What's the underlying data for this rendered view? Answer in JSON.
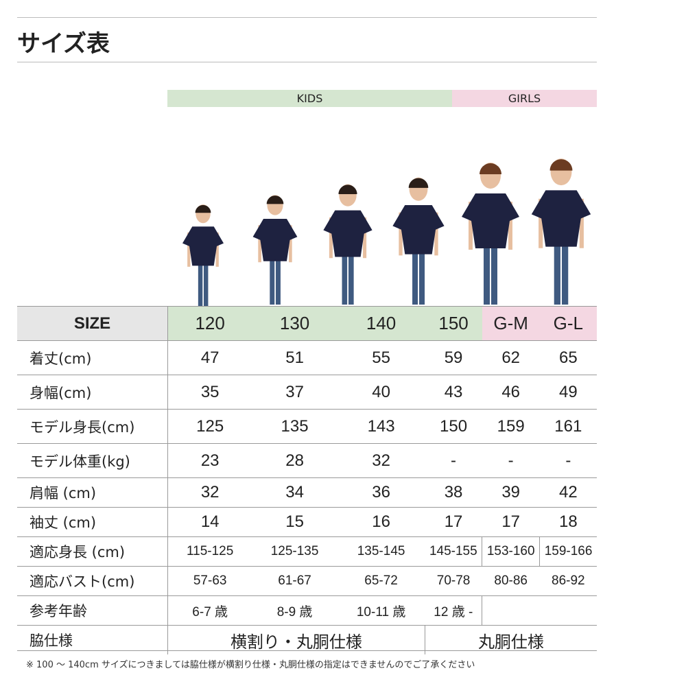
{
  "title": "サイズ表",
  "groups": {
    "kids": "KIDS",
    "girls": "GIRLS",
    "kids_color": "#d5e6d0",
    "girls_color": "#f4d7e2"
  },
  "header": {
    "label": "SIZE",
    "sizes": [
      "120",
      "130",
      "140",
      "150",
      "G-M",
      "G-L"
    ]
  },
  "rows": [
    {
      "label": "着丈(cm)",
      "values": [
        "47",
        "51",
        "55",
        "59",
        "62",
        "65"
      ]
    },
    {
      "label": "身幅(cm)",
      "values": [
        "35",
        "37",
        "40",
        "43",
        "46",
        "49"
      ]
    },
    {
      "label": "モデル身長(cm)",
      "values": [
        "125",
        "135",
        "143",
        "150",
        "159",
        "161"
      ]
    },
    {
      "label": "モデル体重(kg)",
      "values": [
        "23",
        "28",
        "32",
        "-",
        "-",
        "-"
      ]
    },
    {
      "label": "肩幅 (cm)",
      "values": [
        "32",
        "34",
        "36",
        "38",
        "39",
        "42"
      ]
    },
    {
      "label": "袖丈 (cm)",
      "values": [
        "14",
        "15",
        "16",
        "17",
        "17",
        "18"
      ]
    },
    {
      "label": "適応身長 (cm)",
      "values": [
        "115-125",
        "125-135",
        "135-145",
        "145-155",
        "153-160",
        "159-166"
      ]
    },
    {
      "label": "適応バスト(cm)",
      "values": [
        "57-63",
        "61-67",
        "65-72",
        "70-78",
        "80-86",
        "86-92"
      ]
    },
    {
      "label": "参考年齢",
      "values": [
        "6-7 歳",
        "8-9 歳",
        "10-11 歳",
        "12 歳 -"
      ]
    },
    {
      "label": "脇仕様",
      "values": [
        "横割り・丸胴仕様",
        "丸胴仕様"
      ]
    }
  ],
  "note": "※ 100 〜 140cm サイズにつきましては脇仕様が横割り仕様・丸胴仕様の指定はできませんのでご了承ください"
}
